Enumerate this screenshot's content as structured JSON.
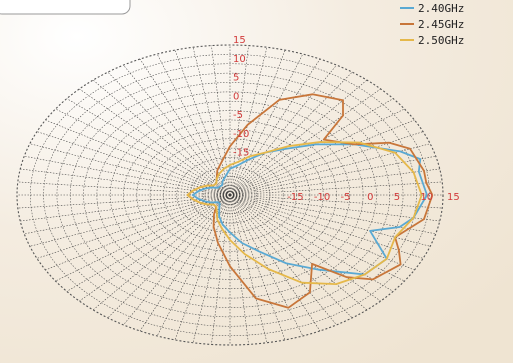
{
  "chart_data": {
    "type": "polar-line",
    "radial_ticks": [
      "15",
      "10",
      "5",
      "0",
      "-5",
      "-10",
      "-15"
    ],
    "radial_range": [
      -25,
      15
    ],
    "angle_step_deg": 5,
    "tick_color": "#d23b3b",
    "series": [
      {
        "name": "2.40GHz",
        "color": "#5aa9d3",
        "theta": [
          0,
          10,
          15,
          20,
          30,
          40,
          50,
          60,
          70,
          80,
          90,
          100,
          110,
          120,
          130,
          140,
          150,
          160,
          170,
          180,
          190,
          200,
          210,
          220,
          230,
          240,
          250,
          260,
          270,
          280,
          290,
          300,
          310,
          320,
          330,
          340,
          345,
          350,
          360
        ],
        "r": [
          12,
          11,
          12,
          9,
          2,
          -4,
          -9,
          -12,
          -15,
          -17,
          -18,
          -20,
          -21,
          -22,
          -22,
          -22,
          -21,
          -20,
          -19,
          -18,
          -19,
          -20,
          -21,
          -22,
          -22,
          -21,
          -19,
          -17,
          -15,
          -12,
          -9,
          -4,
          1,
          8,
          9,
          3,
          8,
          10,
          12
        ]
      },
      {
        "name": "2.45GHz",
        "color": "#c8763a",
        "theta": [
          0,
          5,
          10,
          20,
          25,
          30,
          40,
          45,
          50,
          60,
          70,
          80,
          90,
          100,
          110,
          120,
          130,
          140,
          150,
          160,
          170,
          180,
          190,
          200,
          210,
          220,
          230,
          240,
          250,
          260,
          270,
          280,
          290,
          300,
          310,
          315,
          320,
          330,
          335,
          340,
          350,
          360
        ],
        "r": [
          13,
          12,
          12,
          11,
          8,
          2,
          -2,
          5,
          8,
          6,
          2,
          -6,
          -12,
          -16,
          -18,
          -20,
          -21,
          -21,
          -20,
          -19,
          -18,
          -17,
          -18,
          -19,
          -20,
          -21,
          -21,
          -19,
          -16,
          -12,
          -6,
          3,
          7,
          5,
          -1,
          6,
          10,
          12,
          10,
          8,
          12,
          13
        ]
      },
      {
        "name": "2.50GHz",
        "color": "#e5b84a",
        "theta": [
          0,
          10,
          20,
          30,
          40,
          50,
          60,
          70,
          80,
          90,
          100,
          110,
          120,
          130,
          140,
          150,
          160,
          170,
          180,
          190,
          200,
          210,
          220,
          230,
          240,
          250,
          260,
          270,
          280,
          290,
          300,
          310,
          320,
          330,
          340,
          350,
          360
        ],
        "r": [
          11,
          10,
          8,
          3,
          -3,
          -8,
          -12,
          -14,
          -16,
          -17,
          -18,
          -19,
          -20,
          -21,
          -21,
          -20,
          -19,
          -18,
          -17,
          -18,
          -19,
          -20,
          -21,
          -21,
          -20,
          -18,
          -16,
          -13,
          -9,
          -4,
          2,
          6,
          8,
          9,
          8,
          10,
          11
        ]
      }
    ]
  }
}
